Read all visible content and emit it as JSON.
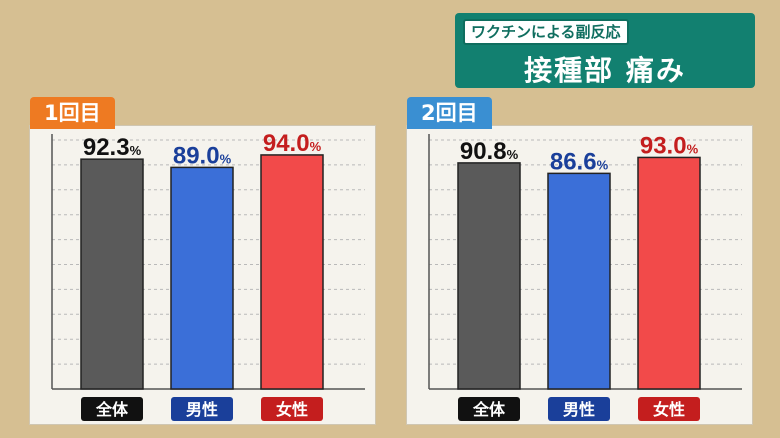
{
  "header": {
    "subtitle": "ワクチンによる副反応",
    "title": "接種部 痛み"
  },
  "colors": {
    "bg": "#d6bf92",
    "panel": "#f5f3ed",
    "title_box": "#128070",
    "tab1": "#ee7a22",
    "tab2": "#3a8fd2",
    "bars": [
      "#5a5a5a",
      "#3b6fd8",
      "#f24a4a"
    ],
    "labels": [
      "#111111",
      "#1a3f9a",
      "#c41e1e"
    ]
  },
  "chart_data": [
    {
      "type": "bar",
      "title": "1回目",
      "categories": [
        "全体",
        "男性",
        "女性"
      ],
      "values": [
        92.3,
        89.0,
        94.0
      ],
      "value_labels": [
        "92.3",
        "89.0",
        "94.0"
      ],
      "unit": "%",
      "ylim": [
        0,
        100
      ],
      "grid": true
    },
    {
      "type": "bar",
      "title": "2回目",
      "categories": [
        "全体",
        "男性",
        "女性"
      ],
      "values": [
        90.8,
        86.6,
        93.0
      ],
      "value_labels": [
        "90.8",
        "86.6",
        "93.0"
      ],
      "unit": "%",
      "ylim": [
        0,
        100
      ],
      "grid": true
    }
  ]
}
